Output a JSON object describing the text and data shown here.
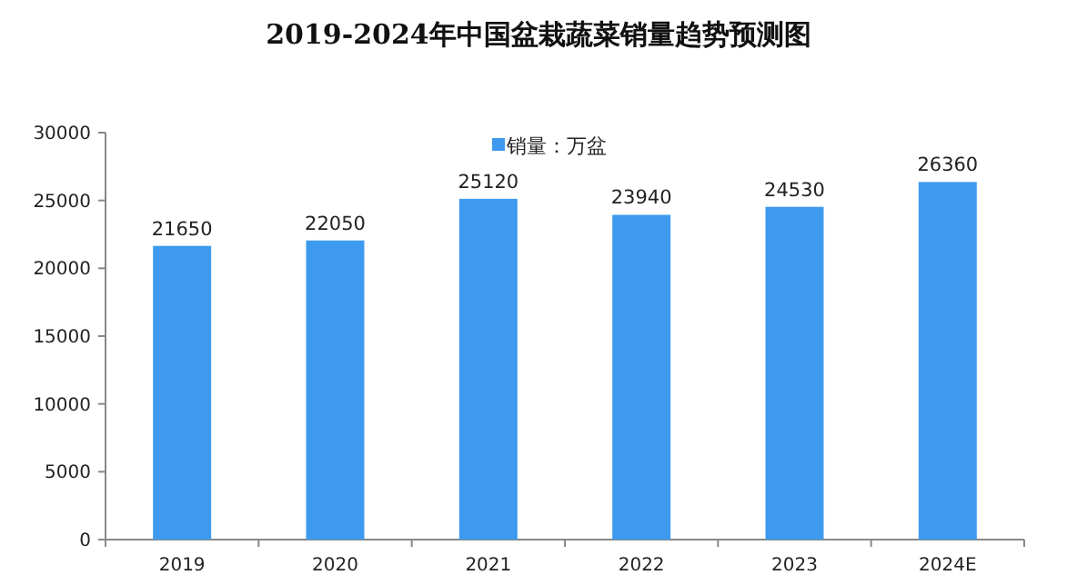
{
  "chart_data": {
    "type": "bar",
    "title": "2019-2024年中国盆栽蔬菜销量趋势预测图",
    "categories": [
      "2019",
      "2020",
      "2021",
      "2022",
      "2023",
      "2024E"
    ],
    "series": [
      {
        "name": "销量：万盆",
        "color": "#3d9aee",
        "values": [
          21650,
          22050,
          25120,
          23940,
          24530,
          26360
        ]
      }
    ],
    "ylim": [
      0,
      30000
    ],
    "yticks": [
      0,
      5000,
      10000,
      15000,
      20000,
      25000,
      30000
    ],
    "data_labels": true,
    "legend": "top",
    "grid": false
  }
}
